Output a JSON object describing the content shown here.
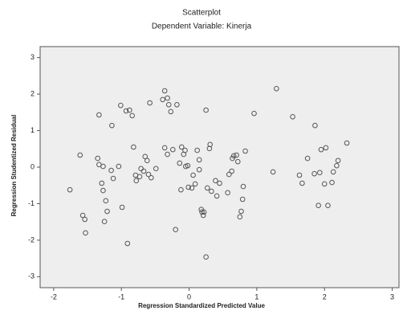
{
  "chart_data": {
    "type": "scatter",
    "title": "Scatterplot",
    "subtitle": "Dependent Variable: Kinerja",
    "x_label": "Regression Standardized Predicted Value",
    "y_label": "Regression Studentized Residual",
    "xlim": [
      -2.2,
      3.1
    ],
    "ylim": [
      -3.3,
      3.3
    ],
    "xticks": [
      -2,
      -1,
      0,
      1,
      2,
      3
    ],
    "yticks": [
      -3,
      -2,
      -1,
      0,
      1,
      2,
      3
    ],
    "grid": false,
    "color": "#555555",
    "background": "#eeeeee",
    "x": [
      -1.76,
      -1.61,
      -1.57,
      -1.54,
      -1.53,
      -1.33,
      -1.35,
      -1.33,
      -1.27,
      -1.29,
      -1.27,
      -1.23,
      -1.21,
      -1.25,
      -1.14,
      -1.15,
      -1.12,
      -1.01,
      -1.04,
      -0.99,
      -0.93,
      -0.91,
      -0.88,
      -0.84,
      -0.82,
      -0.79,
      -0.78,
      -0.73,
      -0.71,
      -0.67,
      -0.65,
      -0.6,
      -0.62,
      -0.58,
      -0.56,
      -0.49,
      -0.39,
      -0.36,
      -0.32,
      -0.36,
      -0.32,
      -0.3,
      -0.27,
      -0.24,
      -0.2,
      -0.18,
      -0.14,
      -0.12,
      -0.11,
      -0.08,
      -0.06,
      -0.05,
      -0.02,
      -0.01,
      0.04,
      0.06,
      0.09,
      0.12,
      0.15,
      0.15,
      0.18,
      0.19,
      0.21,
      0.22,
      0.25,
      0.25,
      0.27,
      0.3,
      0.31,
      0.33,
      0.39,
      0.41,
      0.45,
      0.57,
      0.59,
      0.63,
      0.64,
      0.66,
      0.7,
      0.72,
      0.75,
      0.77,
      0.79,
      0.8,
      0.83,
      0.96,
      1.24,
      1.29,
      1.53,
      1.63,
      1.67,
      1.75,
      1.85,
      1.91,
      1.93,
      1.95,
      2.0,
      2.02,
      2.05,
      2.11,
      2.13,
      2.18,
      2.2,
      1.86,
      2.33
    ],
    "values": [
      -0.62,
      0.33,
      -1.32,
      -1.43,
      -1.8,
      1.43,
      0.24,
      0.07,
      0.02,
      -0.44,
      -0.64,
      -0.92,
      -1.21,
      -1.49,
      1.14,
      -0.09,
      -0.31,
      1.69,
      0.02,
      -1.1,
      1.54,
      -2.09,
      1.56,
      1.41,
      0.55,
      -0.22,
      -0.37,
      -0.26,
      -0.04,
      -0.11,
      0.29,
      -0.2,
      0.18,
      1.76,
      -0.29,
      -0.04,
      1.85,
      2.09,
      1.89,
      0.53,
      0.35,
      1.71,
      1.52,
      0.48,
      -1.71,
      1.71,
      0.11,
      -0.62,
      0.55,
      0.35,
      0.46,
      0.02,
      0.04,
      -0.55,
      -0.57,
      -0.22,
      -0.46,
      0.46,
      0.2,
      -0.07,
      -1.16,
      -1.23,
      -1.32,
      -1.23,
      1.56,
      -2.46,
      -0.57,
      0.51,
      0.62,
      -0.66,
      -0.37,
      -0.79,
      -0.44,
      -0.7,
      -0.2,
      -0.11,
      0.24,
      0.31,
      0.33,
      0.15,
      -1.36,
      -1.21,
      -0.88,
      -0.53,
      0.44,
      1.47,
      -0.13,
      2.15,
      1.38,
      -0.22,
      -0.44,
      0.24,
      -0.18,
      -1.05,
      -0.15,
      0.48,
      -0.46,
      0.53,
      -1.05,
      -0.42,
      -0.13,
      0.04,
      0.18,
      1.14,
      0.66
    ]
  }
}
